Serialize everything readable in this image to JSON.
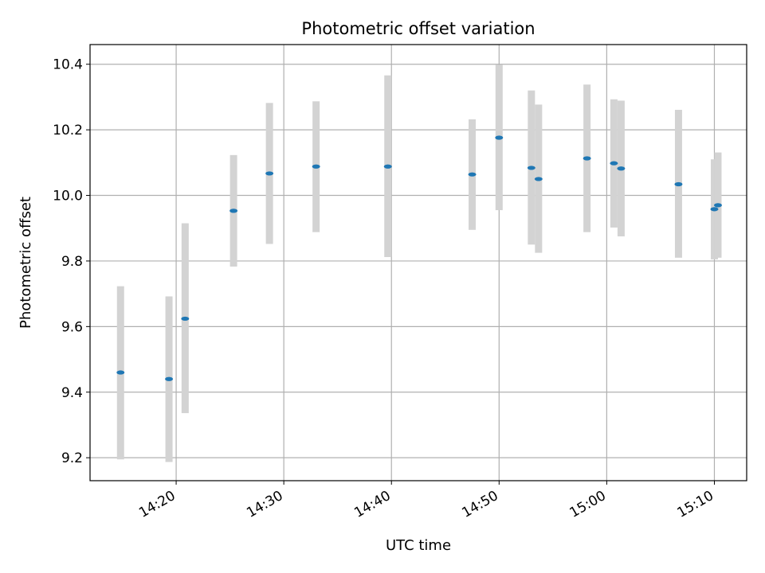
{
  "chart_data": {
    "type": "scatter",
    "title": "Photometric offset variation",
    "xlabel": "UTC time",
    "ylabel": "Photometric offset",
    "xlim": [
      "14:12:00",
      "15:13:00"
    ],
    "ylim": [
      9.13,
      10.46
    ],
    "x_tick_labels": [
      "14:20",
      "14:30",
      "14:40",
      "14:50",
      "15:00",
      "15:10"
    ],
    "y_tick_labels": [
      "9.2",
      "9.4",
      "9.6",
      "9.8",
      "10.0",
      "10.2",
      "10.4"
    ],
    "y_ticks": [
      9.2,
      9.4,
      9.6,
      9.8,
      10.0,
      10.2,
      10.4
    ],
    "grid": true,
    "colors": {
      "point": "#1f77b4",
      "errorbar": "#d3d3d3",
      "grid": "#b0b0b0"
    },
    "points": [
      {
        "time": "14:14:50",
        "y": 9.46,
        "ymin": 9.195,
        "ymax": 9.723
      },
      {
        "time": "14:19:20",
        "y": 9.44,
        "ymin": 9.187,
        "ymax": 9.692
      },
      {
        "time": "14:20:50",
        "y": 9.624,
        "ymin": 9.336,
        "ymax": 9.915
      },
      {
        "time": "14:25:20",
        "y": 9.953,
        "ymin": 9.783,
        "ymax": 10.123
      },
      {
        "time": "14:28:40",
        "y": 10.067,
        "ymin": 9.852,
        "ymax": 10.282
      },
      {
        "time": "14:33:00",
        "y": 10.088,
        "ymin": 9.888,
        "ymax": 10.287
      },
      {
        "time": "14:39:40",
        "y": 10.088,
        "ymin": 9.812,
        "ymax": 10.366
      },
      {
        "time": "14:47:30",
        "y": 10.064,
        "ymin": 9.895,
        "ymax": 10.232
      },
      {
        "time": "14:50:00",
        "y": 10.176,
        "ymin": 9.955,
        "ymax": 10.398
      },
      {
        "time": "14:53:00",
        "y": 10.084,
        "ymin": 9.85,
        "ymax": 10.32
      },
      {
        "time": "14:53:40",
        "y": 10.05,
        "ymin": 9.825,
        "ymax": 10.277
      },
      {
        "time": "14:58:10",
        "y": 10.113,
        "ymin": 9.888,
        "ymax": 10.338
      },
      {
        "time": "15:00:40",
        "y": 10.098,
        "ymin": 9.902,
        "ymax": 10.293
      },
      {
        "time": "15:01:20",
        "y": 10.082,
        "ymin": 9.875,
        "ymax": 10.289
      },
      {
        "time": "15:06:40",
        "y": 10.034,
        "ymin": 9.81,
        "ymax": 10.261
      },
      {
        "time": "15:10:00",
        "y": 9.958,
        "ymin": 9.805,
        "ymax": 10.11
      },
      {
        "time": "15:10:20",
        "y": 9.97,
        "ymin": 9.81,
        "ymax": 10.131
      }
    ]
  }
}
